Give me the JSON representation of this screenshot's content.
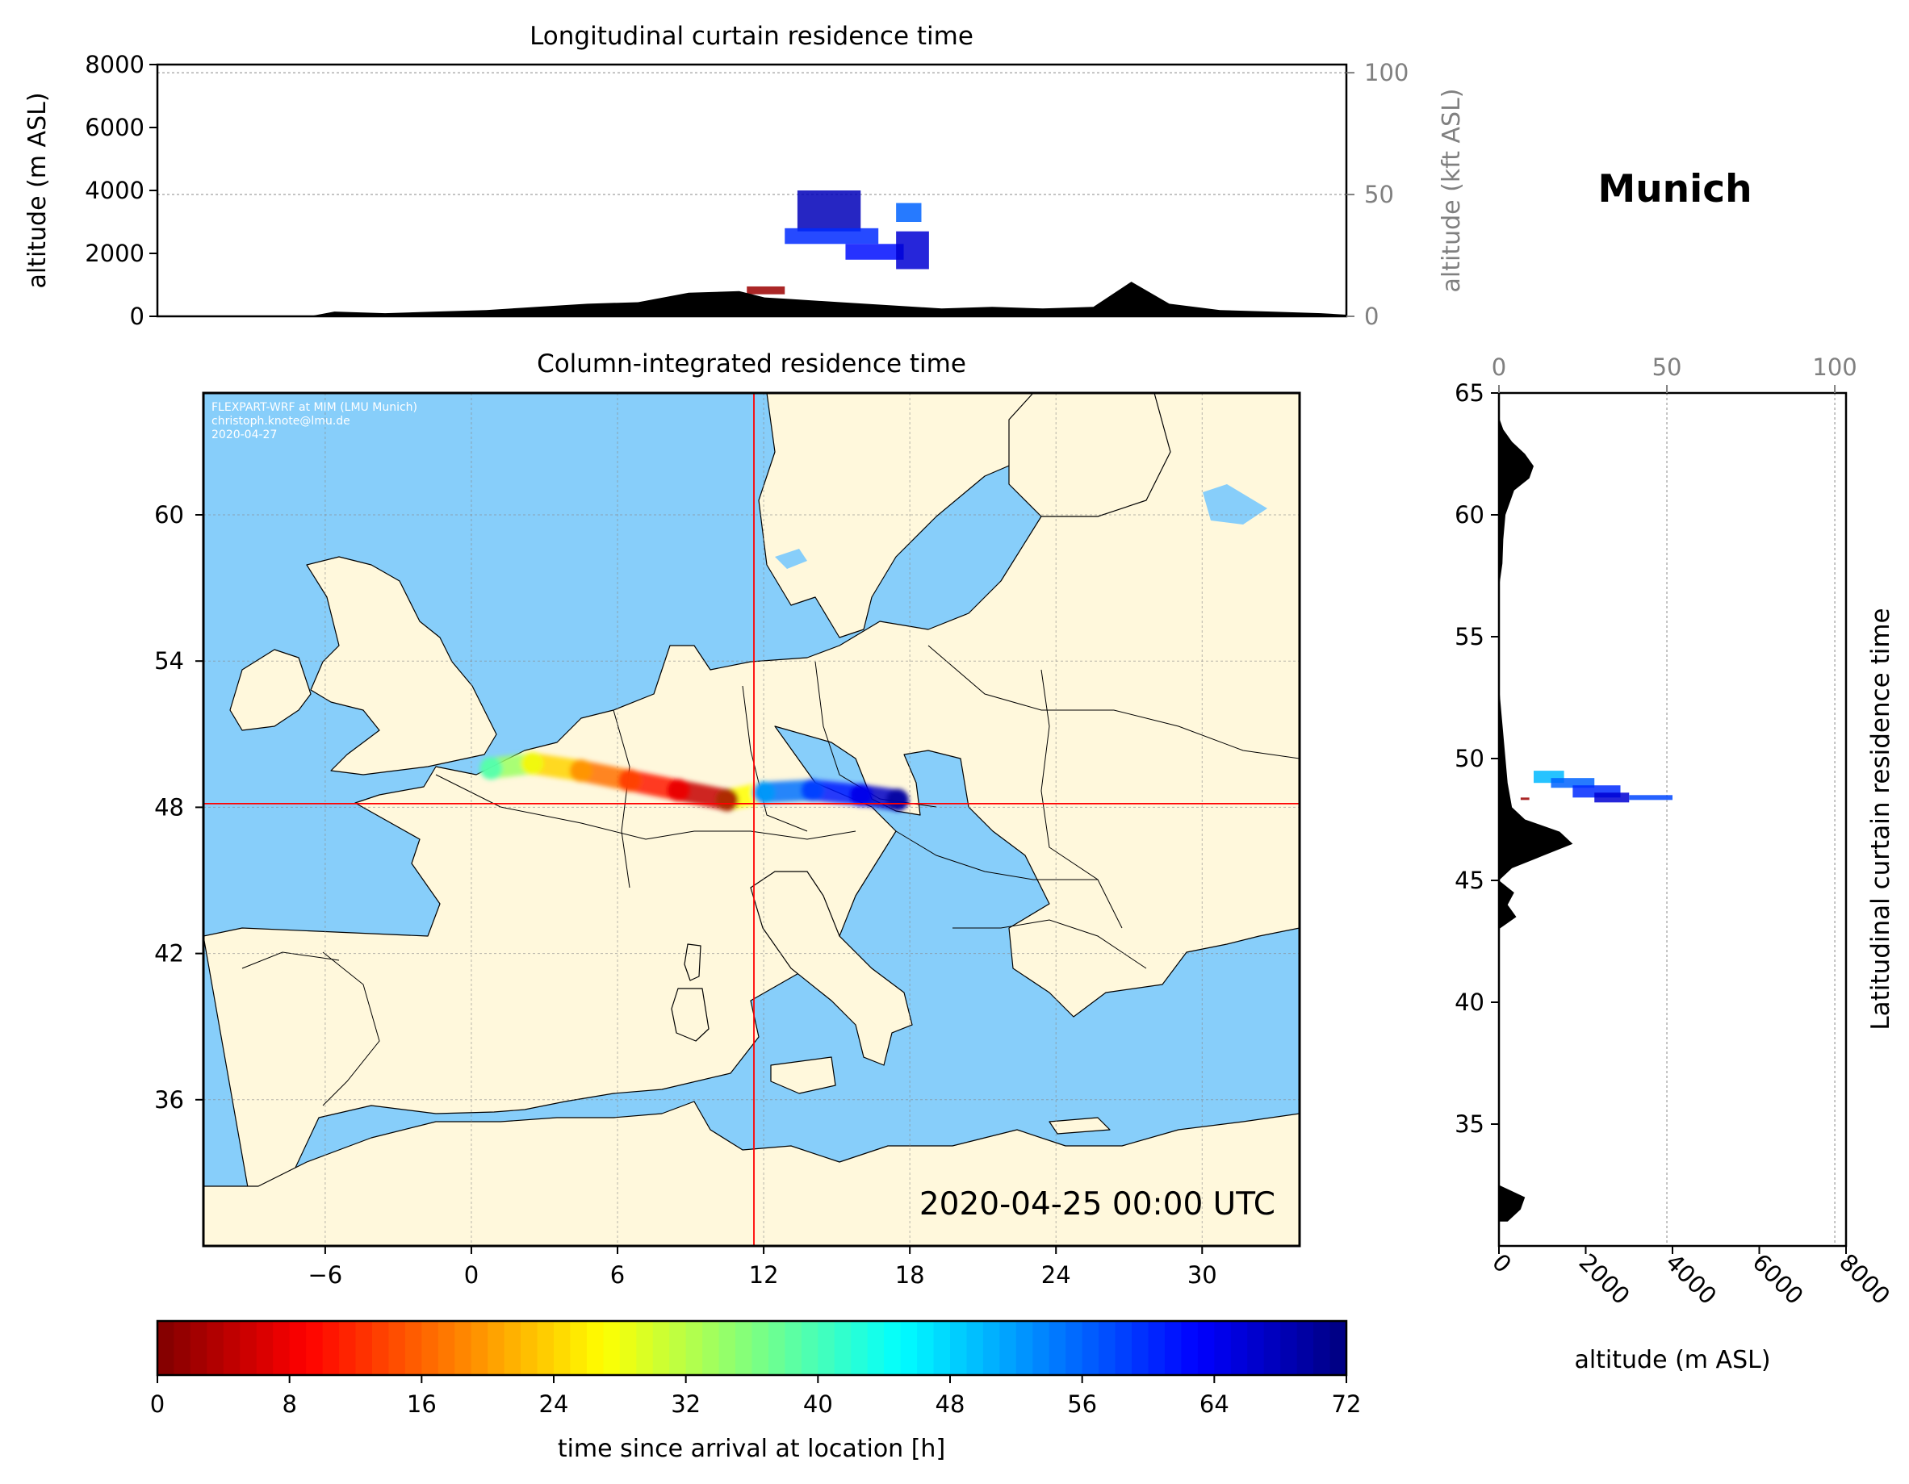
{
  "station": "Munich",
  "credit_lines": [
    "FLEXPART-WRF at MIM (LMU Munich)",
    "christoph.knote@lmu.de",
    "2020-04-27"
  ],
  "timestamp": "2020-04-25 00:00 UTC",
  "colors": {
    "sea": "#87CEFA",
    "land": "#FFF8DC",
    "border": "#000000",
    "crosshair": "#FF0000",
    "terrain": "#000000",
    "frame": "#000000",
    "colormap": [
      "#00007F",
      "#0000FF",
      "#007FFF",
      "#00FFFF",
      "#7FFF7F",
      "#FFFF00",
      "#FF7F00",
      "#FF0000",
      "#7F0000"
    ]
  },
  "chart_data": [
    {
      "id": "longitudinal",
      "type": "heatmap",
      "title": "Longitudinal curtain residence time",
      "ylabel": "altitude (m ASL)",
      "ylabel_right": "altitude (kft ASL)",
      "ylim": [
        0,
        8000
      ],
      "yticks": [
        0,
        2000,
        4000,
        6000,
        8000
      ],
      "ylim_right": [
        0,
        26.25
      ],
      "yticks_right": [
        0,
        50,
        100
      ],
      "xlim": [
        -13,
        34
      ],
      "grid": true,
      "terrain_profile": {
        "lon": [
          -13,
          -7,
          -6,
          -4,
          -2,
          0,
          2,
          4,
          6,
          8,
          10,
          11,
          12,
          14,
          16,
          18,
          20,
          22,
          24,
          25.5,
          27,
          29,
          31,
          33,
          34
        ],
        "alt": [
          0,
          0,
          150,
          100,
          150,
          200,
          300,
          400,
          450,
          750,
          800,
          600,
          550,
          450,
          350,
          250,
          300,
          250,
          300,
          1100,
          400,
          200,
          150,
          100,
          50
        ]
      },
      "plume": [
        {
          "lon0": 10.3,
          "lon1": 11.8,
          "alt0": 700,
          "alt1": 950,
          "hours": 2
        },
        {
          "lon0": 12.3,
          "lon1": 14.8,
          "alt0": 2700,
          "alt1": 4000,
          "hours": 68
        },
        {
          "lon0": 11.8,
          "lon1": 15.5,
          "alt0": 2300,
          "alt1": 2800,
          "hours": 60
        },
        {
          "lon0": 14.2,
          "lon1": 16.5,
          "alt0": 1800,
          "alt1": 2300,
          "hours": 62
        },
        {
          "lon0": 16.2,
          "lon1": 17.5,
          "alt0": 1500,
          "alt1": 2700,
          "hours": 66
        },
        {
          "lon0": 16.2,
          "lon1": 17.2,
          "alt0": 3000,
          "alt1": 3600,
          "hours": 56
        }
      ]
    },
    {
      "id": "column",
      "type": "heatmap",
      "title": "Column-integrated residence time",
      "xlim": [
        -11,
        34
      ],
      "ylim": [
        30,
        65
      ],
      "xticks": [
        -6,
        0,
        6,
        12,
        18,
        24,
        30
      ],
      "yticks": [
        36,
        42,
        48,
        54,
        60
      ],
      "grid": true,
      "receptor": {
        "lon": 11.6,
        "lat": 48.15
      },
      "plume_track": [
        {
          "lon": 0.8,
          "lat": 49.6,
          "hours": 40
        },
        {
          "lon": 2.5,
          "lat": 49.8,
          "hours": 28
        },
        {
          "lon": 4.5,
          "lat": 49.5,
          "hours": 20
        },
        {
          "lon": 6.5,
          "lat": 49.1,
          "hours": 14
        },
        {
          "lon": 8.5,
          "lat": 48.7,
          "hours": 8
        },
        {
          "lon": 10.5,
          "lat": 48.3,
          "hours": 2
        },
        {
          "lon": 12.0,
          "lat": 48.6,
          "hours": 52
        },
        {
          "lon": 14.0,
          "lat": 48.7,
          "hours": 58
        },
        {
          "lon": 16.0,
          "lat": 48.5,
          "hours": 64
        },
        {
          "lon": 17.5,
          "lat": 48.3,
          "hours": 70
        }
      ]
    },
    {
      "id": "latitudinal",
      "type": "heatmap",
      "title": "Latitudinal curtain residence time",
      "xlabel": "altitude (m ASL)",
      "xlim": [
        0,
        8000
      ],
      "xticks": [
        0,
        2000,
        4000,
        6000,
        8000
      ],
      "xlim_top": [
        0,
        26.25
      ],
      "xticks_top": [
        0,
        50,
        100
      ],
      "ylim": [
        30,
        65
      ],
      "yticks": [
        35,
        40,
        45,
        50,
        55,
        60,
        65
      ],
      "grid": true,
      "terrain_profile": {
        "lat": [
          31,
          31.5,
          32,
          32.5,
          43,
          43.5,
          44,
          44.5,
          45,
          45.5,
          46,
          46.5,
          47,
          47.5,
          48,
          48.5,
          49,
          50,
          51,
          52,
          53,
          57,
          58,
          59,
          60,
          61,
          61.5,
          62,
          62.5,
          63,
          63.5,
          64
        ],
        "alt": [
          200,
          500,
          600,
          0,
          0,
          400,
          200,
          350,
          0,
          300,
          1000,
          1700,
          1400,
          600,
          300,
          250,
          200,
          150,
          100,
          50,
          0,
          0,
          80,
          100,
          150,
          350,
          700,
          800,
          600,
          300,
          100,
          0
        ]
      },
      "plume": [
        {
          "lat0": 48.3,
          "lat1": 48.4,
          "alt0": 500,
          "alt1": 700,
          "hours": 2
        },
        {
          "lat0": 49.0,
          "lat1": 49.5,
          "alt0": 800,
          "alt1": 1500,
          "hours": 50
        },
        {
          "lat0": 48.8,
          "lat1": 49.2,
          "alt0": 1200,
          "alt1": 2200,
          "hours": 56
        },
        {
          "lat0": 48.4,
          "lat1": 48.9,
          "alt0": 1700,
          "alt1": 2800,
          "hours": 60
        },
        {
          "lat0": 48.2,
          "lat1": 48.6,
          "alt0": 2200,
          "alt1": 3000,
          "hours": 66
        },
        {
          "lat0": 48.3,
          "lat1": 48.5,
          "alt0": 3000,
          "alt1": 4000,
          "hours": 58
        }
      ]
    },
    {
      "id": "colorbar",
      "type": "heatmap",
      "xlabel": "time since arrival at location [h]",
      "xlim": [
        0,
        72
      ],
      "xticks": [
        0,
        8,
        16,
        24,
        32,
        40,
        48,
        56,
        64,
        72
      ]
    }
  ]
}
